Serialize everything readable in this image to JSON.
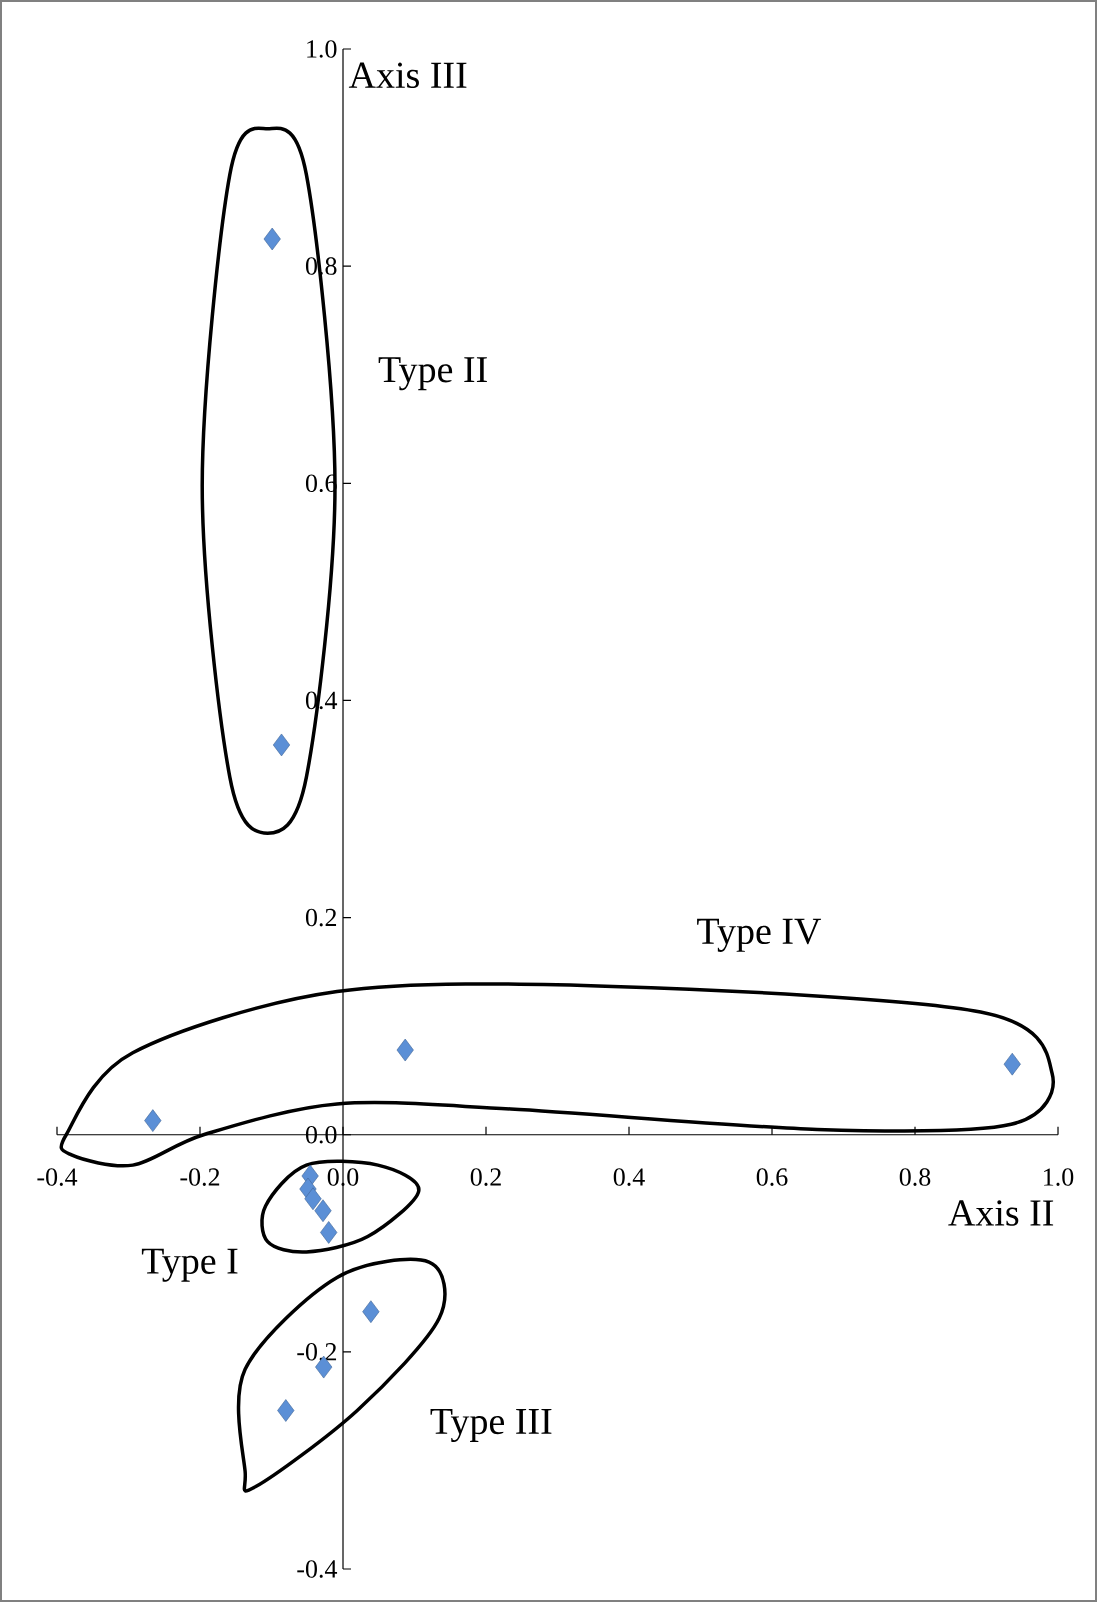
{
  "chart_data": {
    "type": "scatter",
    "xlabel": "Axis II",
    "ylabel": "Axis III",
    "x": [
      -0.099,
      -0.086,
      -0.266,
      0.087,
      0.936,
      -0.046,
      -0.049,
      -0.042,
      -0.028,
      -0.02,
      0.039,
      -0.027,
      -0.08
    ],
    "series": [
      {
        "color": "#5b8fd6",
        "values": [
          0.825,
          0.359,
          0.013,
          0.078,
          0.065,
          -0.038,
          -0.05,
          -0.059,
          -0.07,
          -0.09,
          -0.163,
          -0.214,
          -0.254
        ]
      }
    ],
    "xlim": [
      -0.4,
      1.0
    ],
    "ylim": [
      -0.4,
      1.0
    ],
    "xticks": [
      {
        "value": -0.4,
        "label": "-0.4"
      },
      {
        "value": -0.2,
        "label": "-0.2"
      },
      {
        "value": 0,
        "label": "0.0"
      },
      {
        "value": 0.2,
        "label": "0.2"
      },
      {
        "value": 0.4,
        "label": "0.4"
      },
      {
        "value": 0.6,
        "label": "0.6"
      },
      {
        "value": 0.8,
        "label": "0.8"
      },
      {
        "value": 1.0,
        "label": "1.0"
      }
    ],
    "yticks": [
      {
        "value": -0.4,
        "label": "-0.4"
      },
      {
        "value": -0.2,
        "label": "-0.2"
      },
      {
        "value": 0,
        "label": "0.0"
      },
      {
        "value": 0.2,
        "label": "0.2"
      },
      {
        "value": 0.4,
        "label": "0.4"
      },
      {
        "value": 0.6,
        "label": "0.6"
      },
      {
        "value": 0.8,
        "label": "0.8"
      },
      {
        "value": 1.0,
        "label": "1.0"
      }
    ],
    "annotations": [
      "Type I",
      "Type II",
      "Type III",
      "Type IV"
    ],
    "marker": "diamond",
    "grid": false
  }
}
